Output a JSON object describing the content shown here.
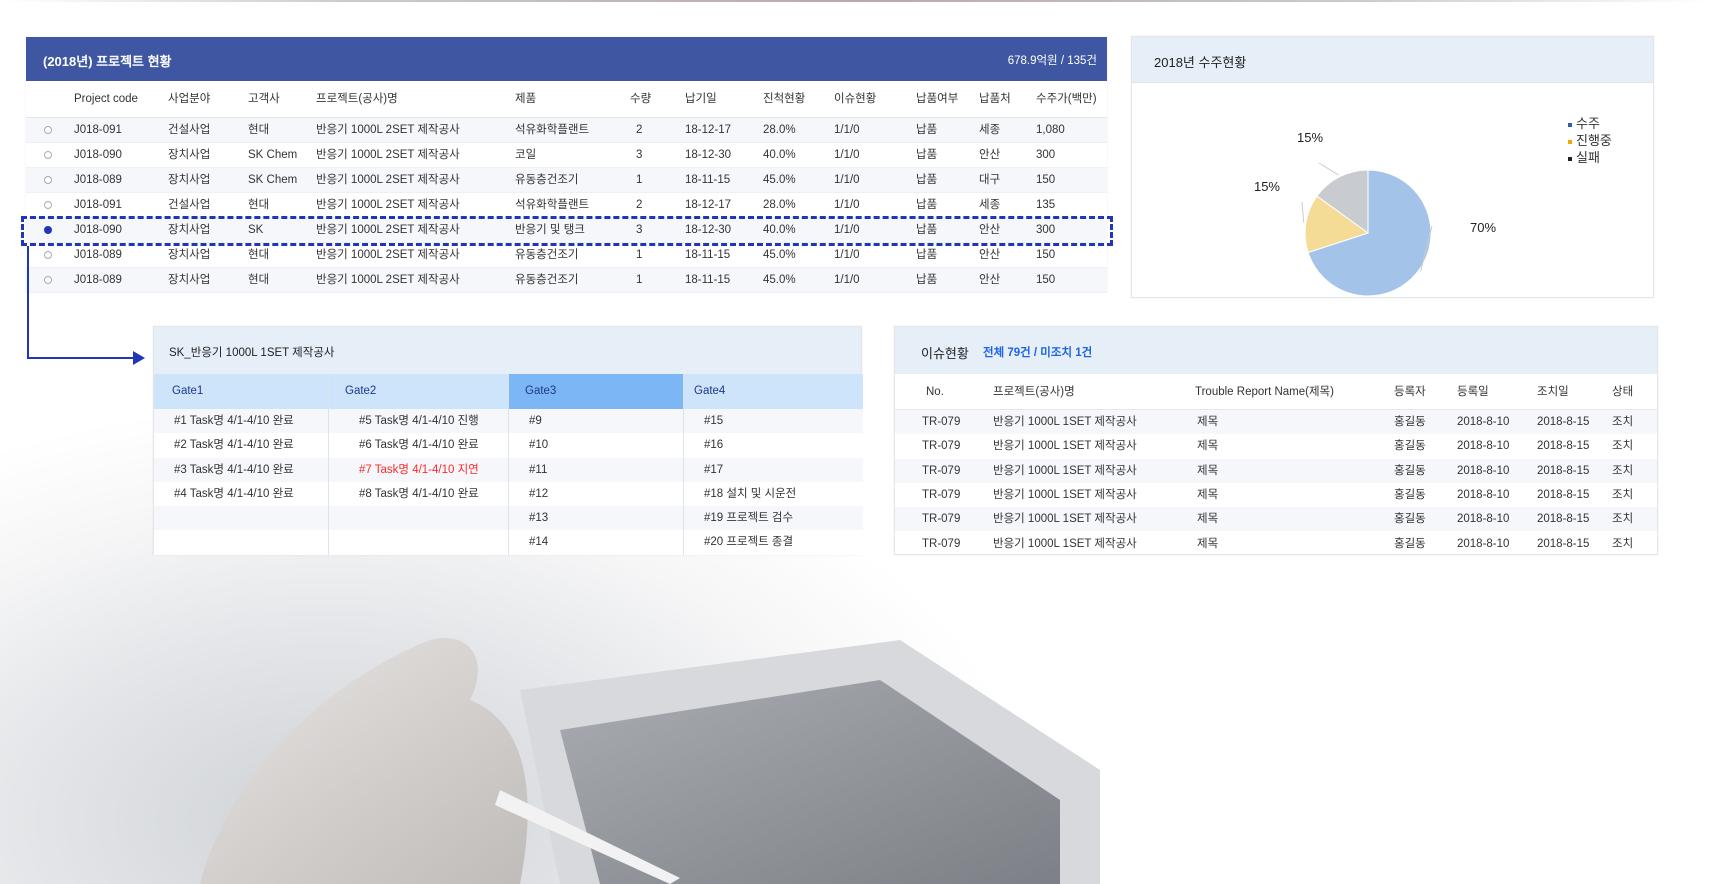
{
  "project_panel": {
    "title": "(2018년) 프로젝트 현황",
    "summary": "678.9억원 / 135건",
    "columns": [
      "Project code",
      "사업분야",
      "고객사",
      "프로젝트(공사)명",
      "제품",
      "수량",
      "납기일",
      "진척현황",
      "이슈현황",
      "납품여부",
      "납품처",
      "수주가(백만)"
    ],
    "rows": [
      {
        "selected": false,
        "cells": [
          "J018-091",
          "건설사업",
          "현대",
          "반응기 1000L 2SET 제작공사",
          "석유화학플랜트",
          "2",
          "18-12-17",
          "28.0%",
          "1/1/0",
          "납품",
          "세종",
          "1,080"
        ]
      },
      {
        "selected": false,
        "cells": [
          "J018-090",
          "장치사업",
          "SK Chem",
          "반응기 1000L 2SET 제작공사",
          "코일",
          "3",
          "18-12-30",
          "40.0%",
          "1/1/0",
          "납품",
          "안산",
          "300"
        ]
      },
      {
        "selected": false,
        "cells": [
          "J018-089",
          "장치사업",
          "SK Chem",
          "반응기 1000L 2SET 제작공사",
          "유동층건조기",
          "1",
          "18-11-15",
          "45.0%",
          "1/1/0",
          "납품",
          "대구",
          "150"
        ]
      },
      {
        "selected": false,
        "cells": [
          "J018-091",
          "건설사업",
          "현대",
          "반응기 1000L 2SET 제작공사",
          "석유화학플랜트",
          "2",
          "18-12-17",
          "28.0%",
          "1/1/0",
          "납품",
          "세종",
          "135"
        ]
      },
      {
        "selected": true,
        "cells": [
          "J018-090",
          "장치사업",
          "SK",
          "반응기 1000L 2SET 제작공사",
          "반응기 및 탱크",
          "3",
          "18-12-30",
          "40.0%",
          "1/1/0",
          "납품",
          "안산",
          "300"
        ]
      },
      {
        "selected": false,
        "cells": [
          "J018-089",
          "장치사업",
          "현대",
          "반응기 1000L 2SET 제작공사",
          "유동층건조기",
          "1",
          "18-11-15",
          "45.0%",
          "1/1/0",
          "납품",
          "안산",
          "150"
        ]
      },
      {
        "selected": false,
        "cells": [
          "J018-089",
          "장치사업",
          "현대",
          "반응기 1000L 2SET 제작공사",
          "유동층건조기",
          "1",
          "18-11-15",
          "45.0%",
          "1/1/0",
          "납품",
          "안산",
          "150"
        ]
      }
    ],
    "header_color": "#3f57a3",
    "highlight_color": "#1f36b8"
  },
  "chart_data": {
    "type": "pie",
    "title": "2018년 수주현황",
    "legend_position": "top-right",
    "slices": [
      {
        "name": "수주",
        "value": 70,
        "label": "70%",
        "color": "#a3c4e8",
        "legend_color": "#2b62b3"
      },
      {
        "name": "진행중",
        "value": 15,
        "label": "15%",
        "color": "#f5dc96",
        "legend_color": "#f5a800"
      },
      {
        "name": "실패",
        "value": 15,
        "label": "15%",
        "color": "#c8ccd0",
        "legend_color": "#222222"
      }
    ]
  },
  "gate_panel": {
    "title": "SK_반응기 1000L 1SET 제작공사",
    "gates": [
      {
        "label": "Gate1",
        "active": false,
        "items": [
          "#1 Task명 4/1-4/10 완료",
          "#2 Task명 4/1-4/10 완료",
          "#3 Task명 4/1-4/10 완료",
          "#4 Task명 4/1-4/10 완료",
          "",
          ""
        ]
      },
      {
        "label": "Gate2",
        "active": false,
        "items": [
          "#5 Task명 4/1-4/10 진행",
          "#6 Task명 4/1-4/10 완료",
          "#7 Task명 4/1-4/10 지연",
          "#8 Task명 4/1-4/10 완료",
          "",
          ""
        ],
        "delayed_index": 2
      },
      {
        "label": "Gate3",
        "active": true,
        "items": [
          "#9",
          "#10",
          "#11",
          "#12",
          "#13",
          "#14"
        ]
      },
      {
        "label": "Gate4",
        "active": false,
        "items": [
          "#15",
          "#16",
          "#17",
          "#18  설치 및 시운전",
          "#19  프로젝트 검수",
          "#20  프로젝트 종결"
        ]
      }
    ],
    "delay_color": "#ff2a2a"
  },
  "issue_panel": {
    "title": "이슈현황",
    "summary": "전체 79건 /  미조치 1건",
    "columns": [
      "No.",
      "프로젝트(공사)명",
      "Trouble Report Name(제목)",
      "등록자",
      "등록일",
      "조치일",
      "상태"
    ],
    "rows": [
      [
        "TR-079",
        "반응기 1000L 1SET 제작공사",
        "제목",
        "홍길동",
        "2018-8-10",
        "2018-8-15",
        "조치"
      ],
      [
        "TR-079",
        "반응기 1000L 1SET 제작공사",
        "제목",
        "홍길동",
        "2018-8-10",
        "2018-8-15",
        "조치"
      ],
      [
        "TR-079",
        "반응기 1000L 1SET 제작공사",
        "제목",
        "홍길동",
        "2018-8-10",
        "2018-8-15",
        "조치"
      ],
      [
        "TR-079",
        "반응기 1000L 1SET 제작공사",
        "제목",
        "홍길동",
        "2018-8-10",
        "2018-8-15",
        "조치"
      ],
      [
        "TR-079",
        "반응기 1000L 1SET 제작공사",
        "제목",
        "홍길동",
        "2018-8-10",
        "2018-8-15",
        "조치"
      ],
      [
        "TR-079",
        "반응기 1000L 1SET 제작공사",
        "제목",
        "홍길동",
        "2018-8-10",
        "2018-8-15",
        "조치"
      ]
    ]
  }
}
